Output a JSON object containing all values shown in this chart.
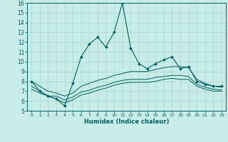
{
  "xlabel": "Humidex (Indice chaleur)",
  "bg_color": "#c8ece8",
  "grid_color": "#a8d8d0",
  "line_color": "#006060",
  "xlim": [
    -0.5,
    23.5
  ],
  "ylim": [
    5,
    16
  ],
  "xticks": [
    0,
    1,
    2,
    3,
    4,
    5,
    6,
    7,
    8,
    9,
    10,
    11,
    12,
    13,
    14,
    15,
    16,
    17,
    18,
    19,
    20,
    21,
    22,
    23
  ],
  "yticks": [
    5,
    6,
    7,
    8,
    9,
    10,
    11,
    12,
    13,
    14,
    15,
    16
  ],
  "line_main": [
    8.0,
    7.0,
    6.5,
    6.2,
    5.5,
    7.8,
    10.5,
    11.8,
    12.5,
    11.5,
    13.0,
    16.0,
    11.4,
    9.8,
    9.3,
    9.8,
    10.2,
    10.5,
    9.3,
    9.5,
    8.0,
    7.7,
    7.5,
    7.5
  ],
  "line2": [
    8.0,
    7.5,
    7.0,
    6.8,
    6.5,
    6.8,
    7.5,
    7.8,
    8.1,
    8.3,
    8.6,
    8.8,
    9.0,
    9.0,
    9.0,
    9.2,
    9.4,
    9.5,
    9.5,
    9.4,
    8.2,
    7.8,
    7.5,
    7.4
  ],
  "line3": [
    7.5,
    7.0,
    6.5,
    6.5,
    6.1,
    6.4,
    6.9,
    7.1,
    7.4,
    7.6,
    7.9,
    8.1,
    8.2,
    8.2,
    8.2,
    8.4,
    8.5,
    8.6,
    8.6,
    8.5,
    7.7,
    7.4,
    7.2,
    7.1
  ],
  "line4": [
    7.2,
    6.8,
    6.5,
    6.2,
    5.8,
    6.1,
    6.6,
    6.8,
    7.1,
    7.3,
    7.6,
    7.8,
    7.9,
    7.9,
    7.9,
    8.0,
    8.2,
    8.3,
    8.2,
    8.2,
    7.5,
    7.2,
    7.0,
    7.0
  ]
}
